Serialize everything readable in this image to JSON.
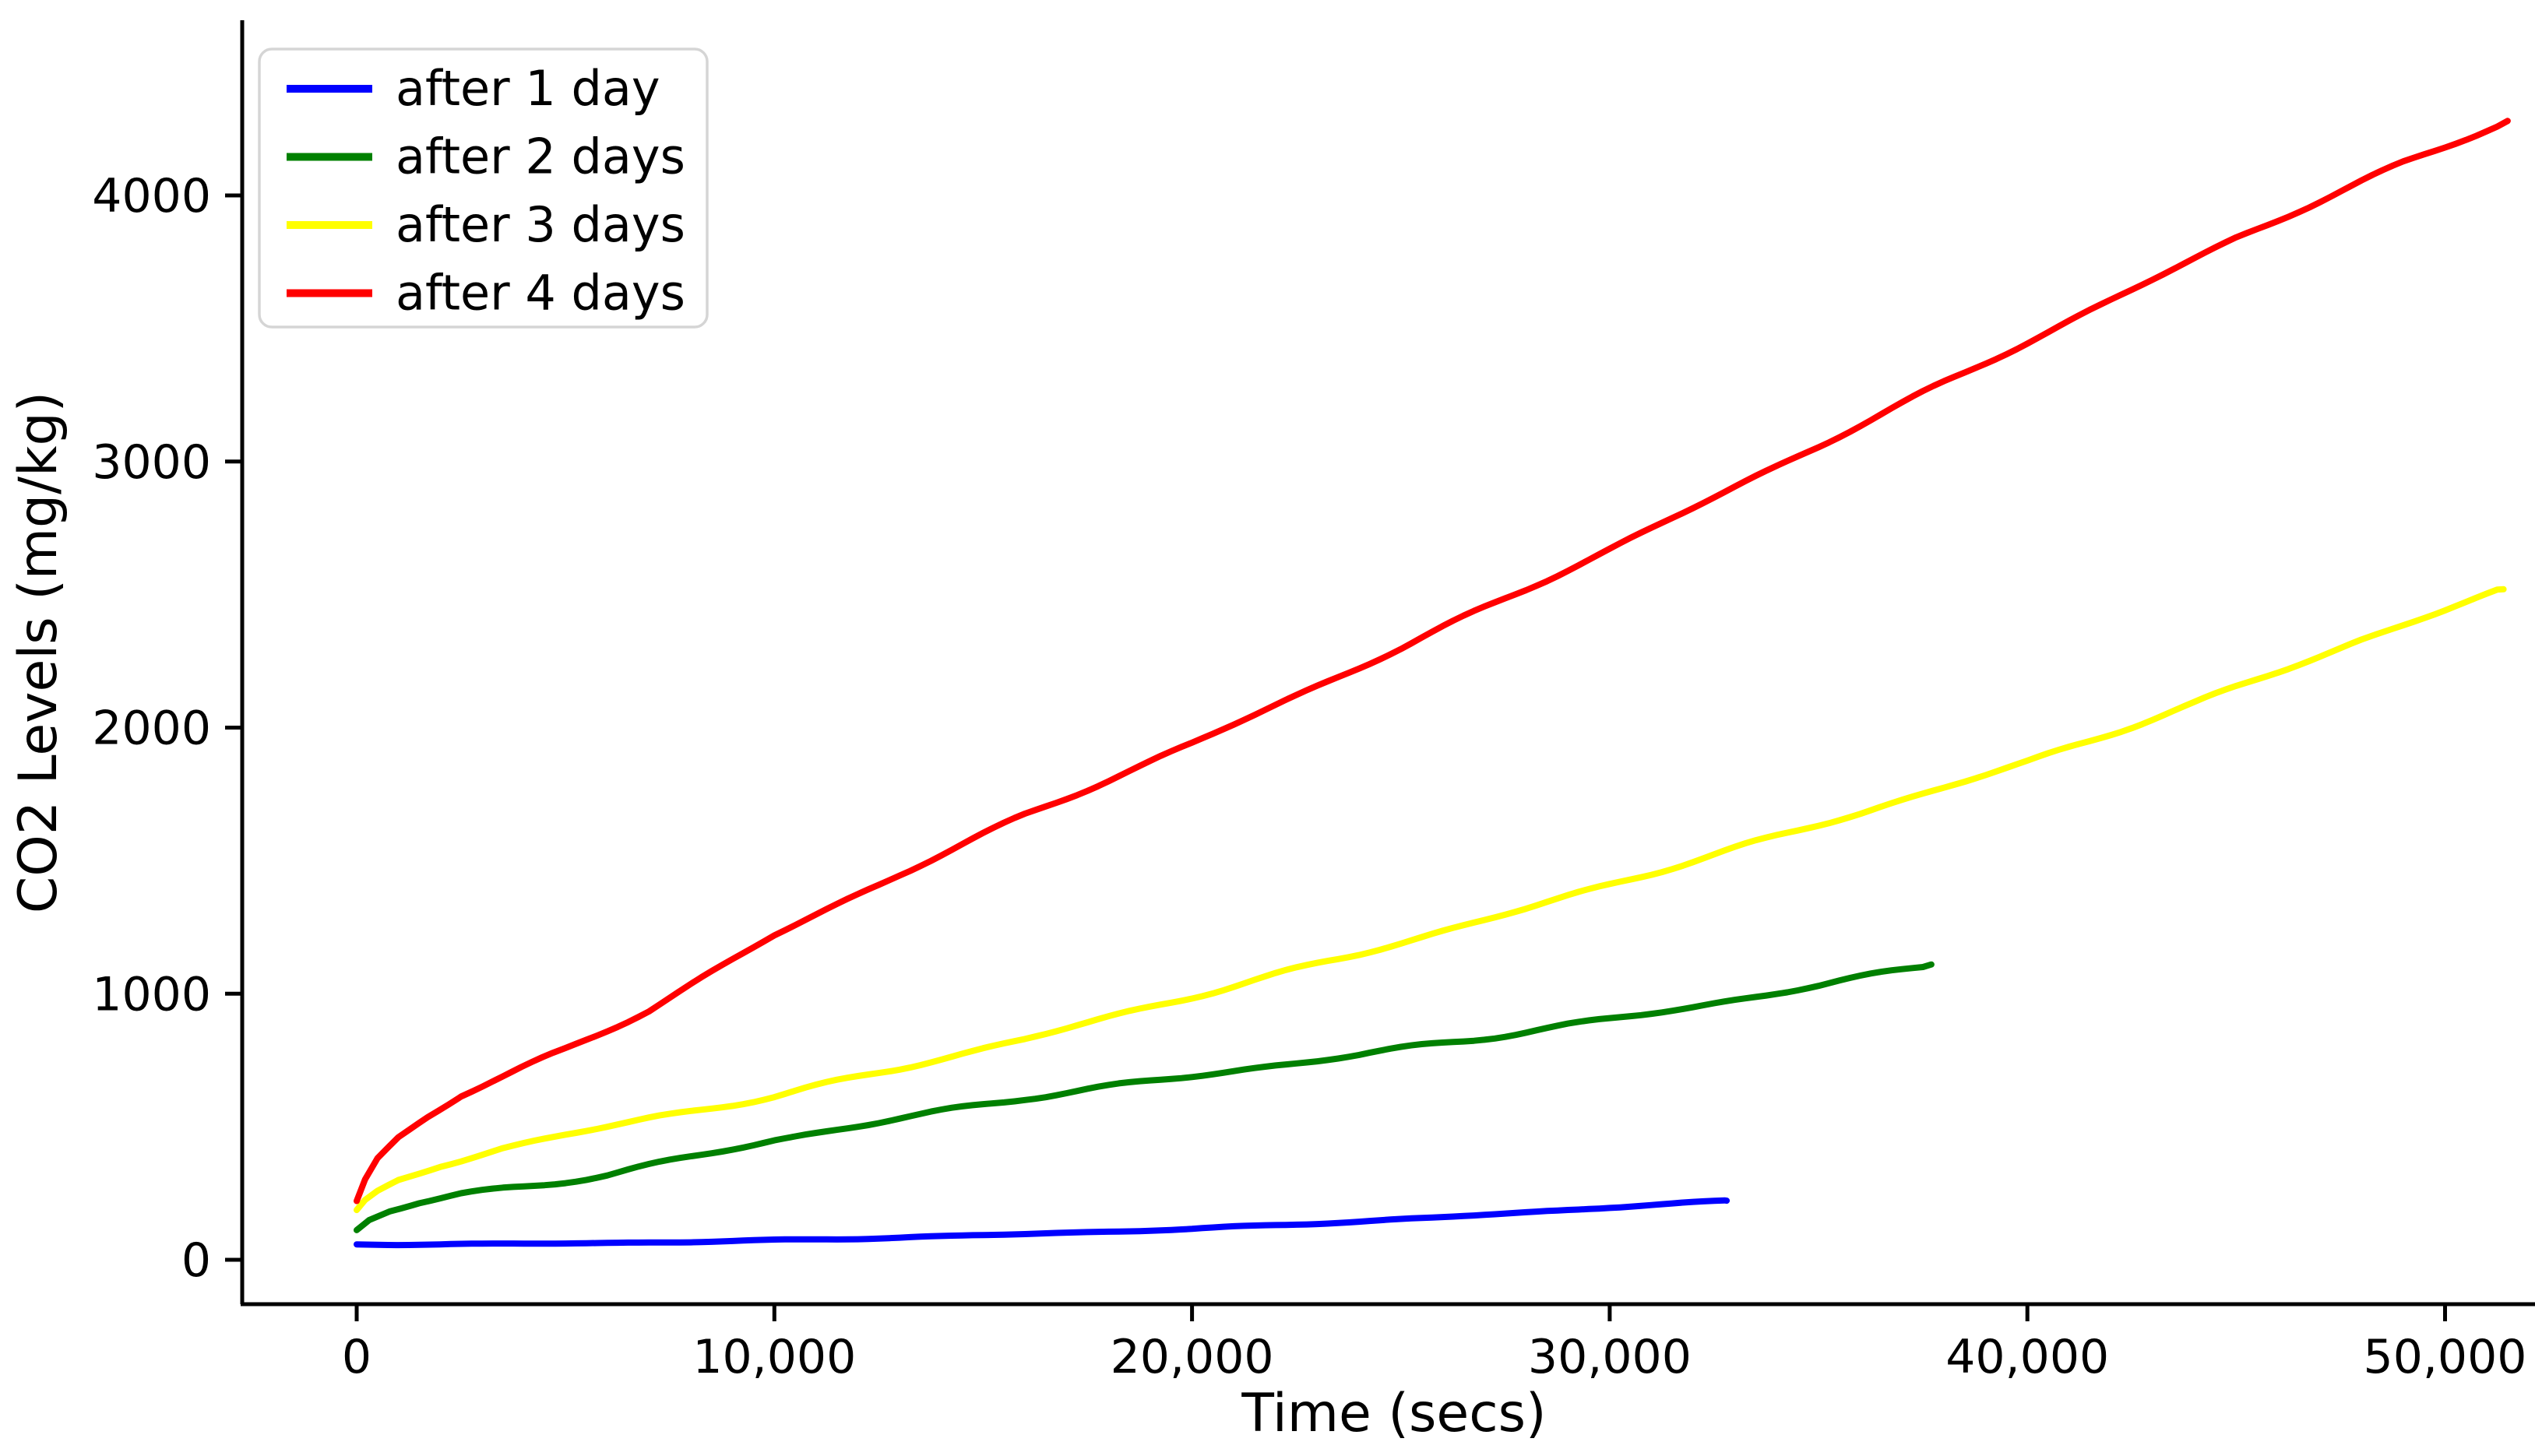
{
  "chart_data": {
    "type": "line",
    "title": "",
    "xlabel": "Time (secs)",
    "ylabel": "CO2 Levels (mg/kg)",
    "xlim": [
      -2700,
      52300
    ],
    "ylim": [
      -170,
      4650
    ],
    "grid": false,
    "legend_position": "upper left",
    "x_ticks": {
      "values": [
        0,
        10000,
        20000,
        30000,
        40000,
        50000
      ],
      "labels": [
        "0",
        "10,000",
        "20,000",
        "30,000",
        "40,000",
        "50,000"
      ]
    },
    "y_ticks": {
      "values": [
        0,
        1000,
        2000,
        3000,
        4000
      ],
      "labels": [
        "0",
        "1000",
        "2000",
        "3000",
        "4000"
      ]
    },
    "series": [
      {
        "name": "after 1 day",
        "color": "#0000ff",
        "x": [
          0,
          3000,
          6000,
          9000,
          10000,
          12000,
          14000,
          16000,
          18000,
          20000,
          22000,
          24000,
          26000,
          28000,
          30000,
          31500,
          32800
        ],
        "y": [
          58,
          59,
          63,
          70,
          73,
          80,
          88,
          97,
          106,
          116,
          130,
          144,
          160,
          178,
          197,
          210,
          222
        ]
      },
      {
        "name": "after 2 days",
        "color": "#008000",
        "x": [
          0,
          300,
          800,
          1500,
          2500,
          4000,
          6000,
          8000,
          10000,
          13000,
          16000,
          20000,
          24000,
          28000,
          32000,
          35000,
          37700
        ],
        "y": [
          111,
          150,
          185,
          215,
          245,
          275,
          320,
          385,
          450,
          530,
          610,
          690,
          770,
          858,
          950,
          1030,
          1110
        ]
      },
      {
        "name": "after 3 days",
        "color": "#ffff00",
        "x": [
          0,
          200,
          500,
          1000,
          2000,
          3500,
          5000,
          7000,
          10000,
          13000,
          16000,
          20000,
          24000,
          28000,
          32000,
          36000,
          40000,
          44000,
          48000,
          51400
        ],
        "y": [
          178,
          215,
          250,
          295,
          355,
          420,
          470,
          530,
          615,
          720,
          830,
          990,
          1150,
          1320,
          1500,
          1680,
          1870,
          2090,
          2330,
          2520
        ]
      },
      {
        "name": "after 4 days",
        "color": "#ff0000",
        "x": [
          0,
          200,
          500,
          1000,
          1700,
          2500,
          3700,
          5000,
          7000,
          10000,
          13000,
          16000,
          20000,
          25000,
          30000,
          35000,
          40000,
          45000,
          49000,
          51500
        ],
        "y": [
          220,
          300,
          380,
          460,
          540,
          620,
          700,
          790,
          940,
          1220,
          1450,
          1670,
          1940,
          2300,
          2670,
          3060,
          3450,
          3840,
          4120,
          4280
        ]
      }
    ]
  }
}
